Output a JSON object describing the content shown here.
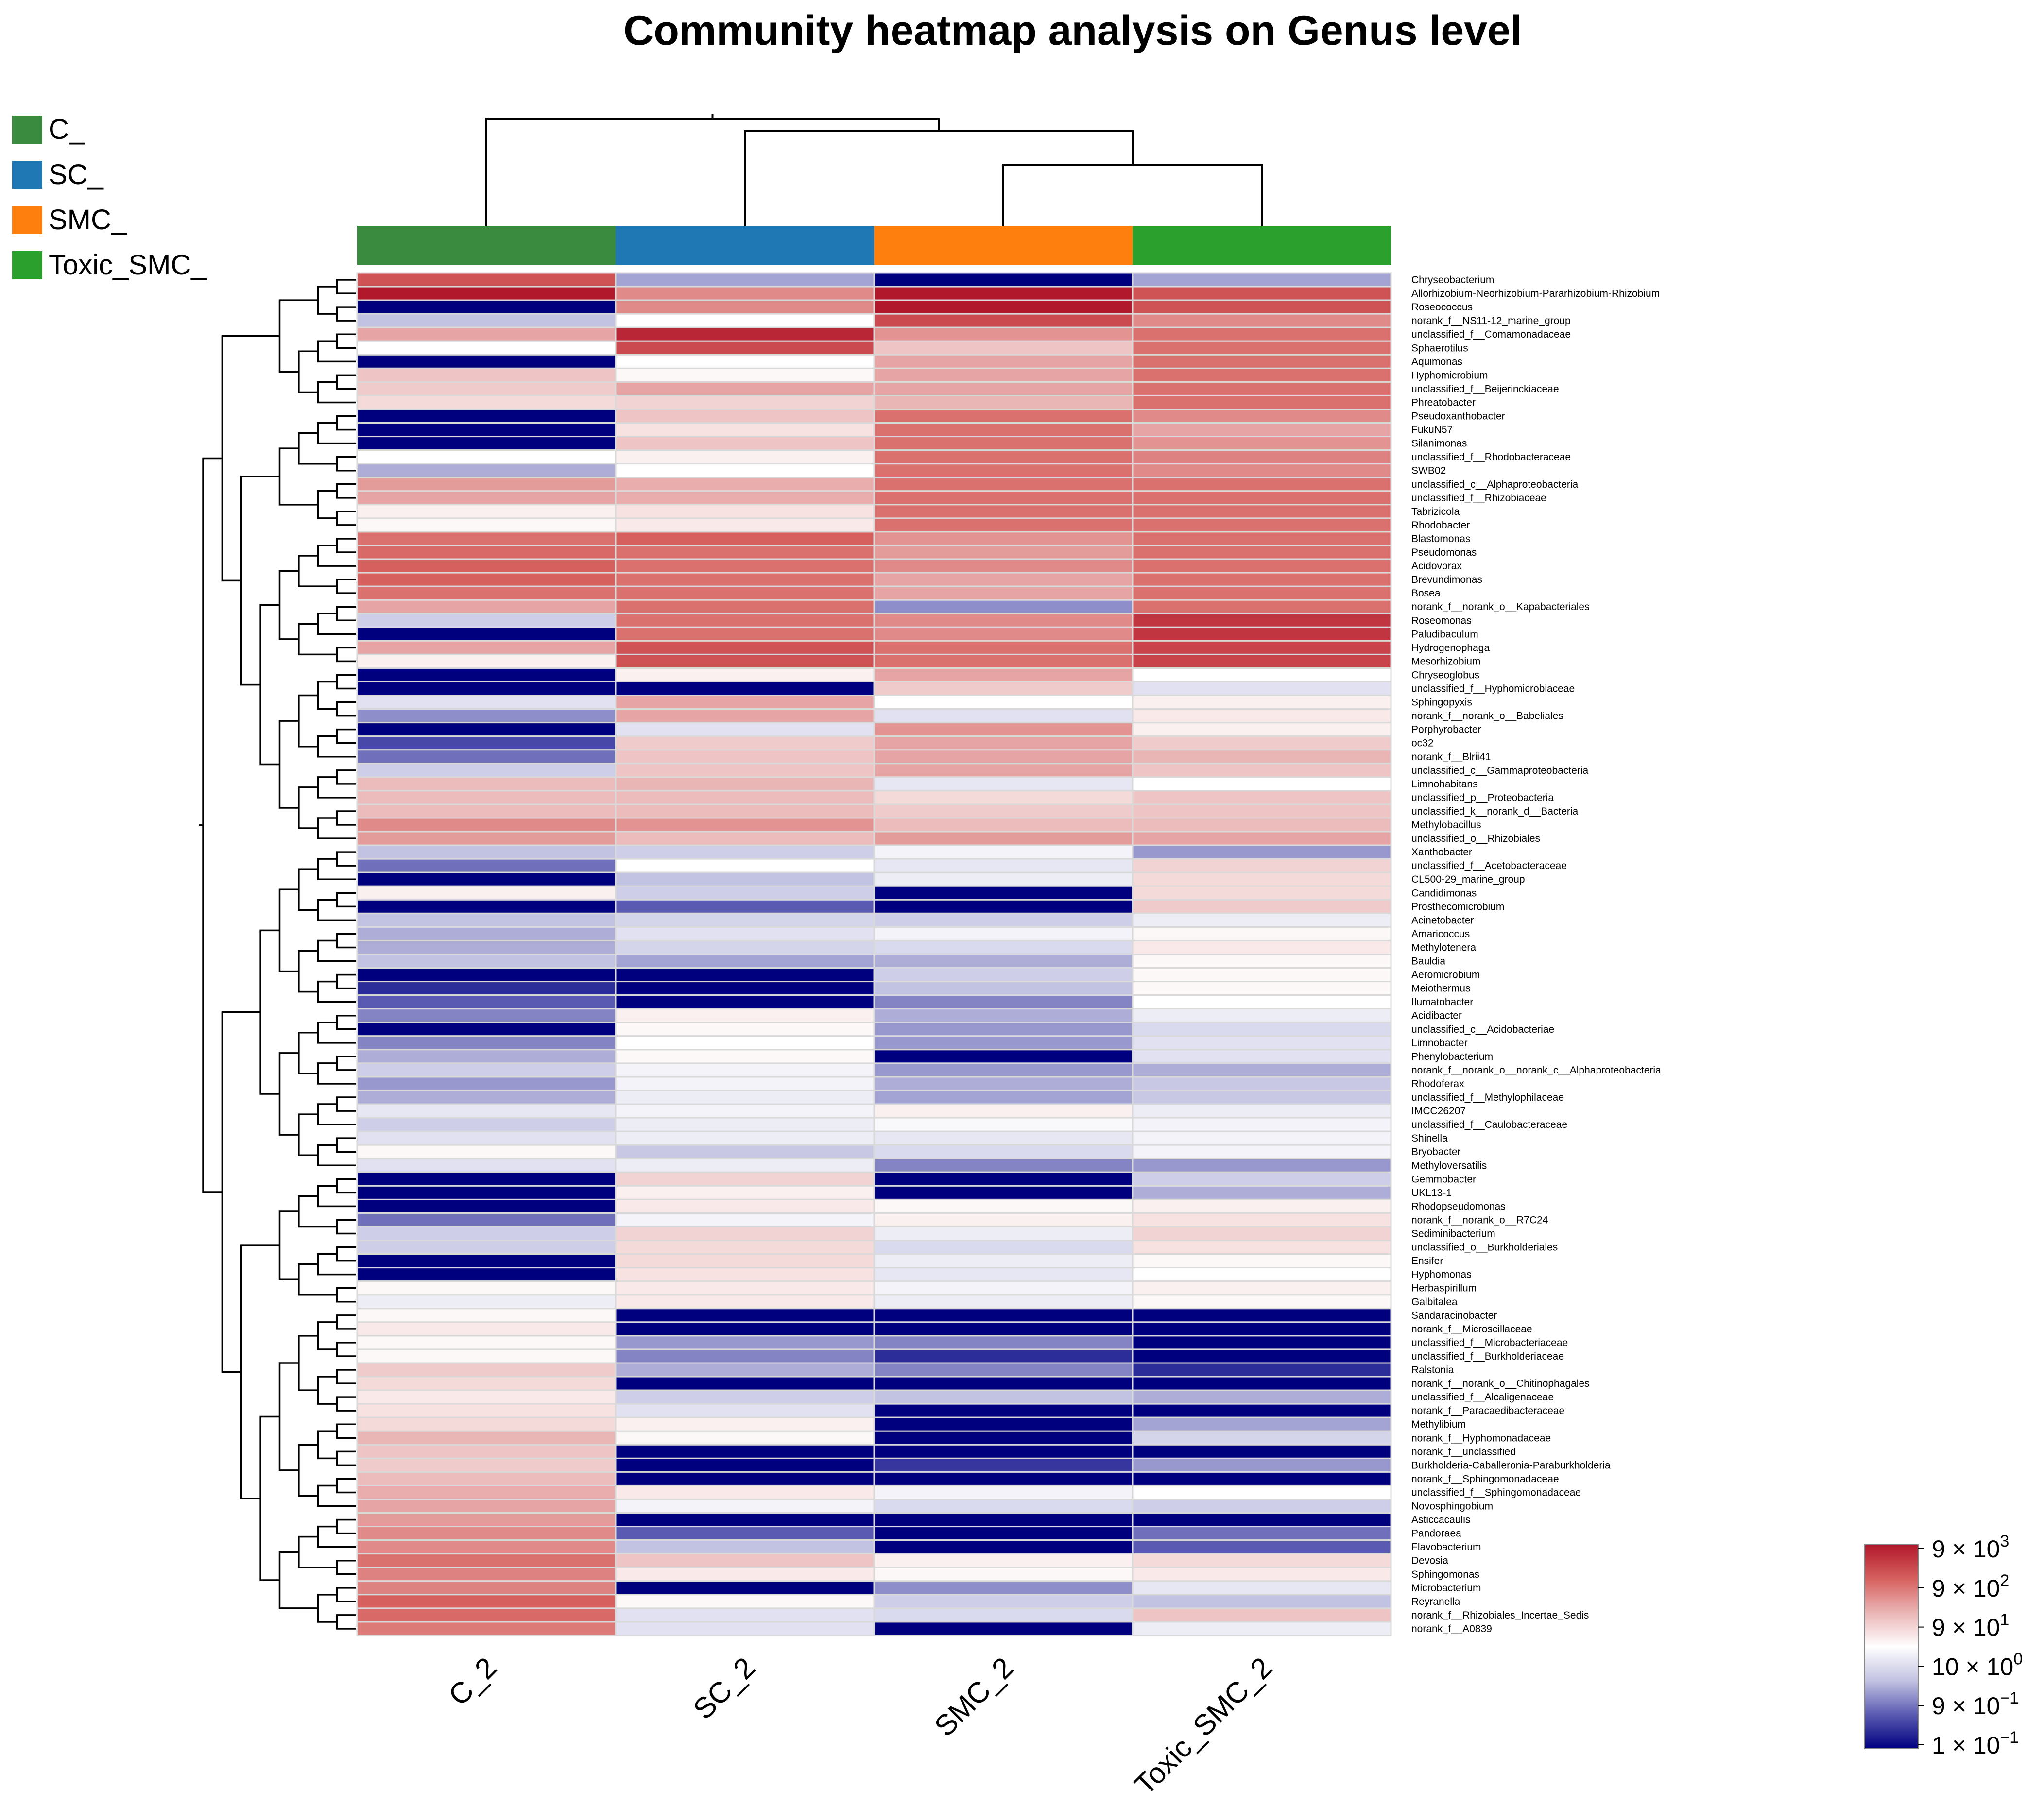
{
  "chart_data": {
    "type": "heatmap",
    "title": "Community heatmap analysis on Genus level",
    "groups": [
      {
        "name": "C_",
        "color": "#3a8a3f"
      },
      {
        "name": "SC_",
        "color": "#1f77b4"
      },
      {
        "name": "SMC_",
        "color": "#ff7f0e"
      },
      {
        "name": "Toxic_SMC_",
        "color": "#2ca02c"
      }
    ],
    "samples": [
      {
        "name": "C_2",
        "group": "C_"
      },
      {
        "name": "SC_2",
        "group": "SC_"
      },
      {
        "name": "SMC_2",
        "group": "SMC_"
      },
      {
        "name": "Toxic_SMC_2",
        "group": "Toxic_SMC_"
      }
    ],
    "colorbar": {
      "ticks": [
        {
          "mantissa": "9",
          "exp": "3",
          "base_label": "9 × 10"
        },
        {
          "mantissa": "9",
          "exp": "2",
          "base_label": "9 × 10"
        },
        {
          "mantissa": "9",
          "exp": "1",
          "base_label": "9 × 10"
        },
        {
          "mantissa": "10",
          "exp": "0",
          "base_label": "10 × 10"
        },
        {
          "mantissa": "9",
          "exp": "−1",
          "base_label": "9 × 10"
        },
        {
          "mantissa": "1",
          "exp": "−1",
          "base_label": "1 × 10"
        }
      ],
      "colors": [
        "#b2182b",
        "#d6605e",
        "#eab5b5",
        "#ffffff",
        "#c2c2e2",
        "#5a5ab2",
        "#00007f"
      ],
      "scale_min": -3,
      "scale_max": 3
    },
    "rows": [
      {
        "name": "Chryseobacterium",
        "values": [
          2.2,
          -1.3,
          -3,
          -1.3
        ]
      },
      {
        "name": "Allorhizobium-Neorhizobium-Pararhizobium-Rhizobium",
        "values": [
          3,
          1.5,
          3,
          2.2
        ]
      },
      {
        "name": "Roseococcus",
        "values": [
          -3,
          1.5,
          3,
          2.2
        ]
      },
      {
        "name": "norank_f__NS11-12_marine_group",
        "values": [
          -1,
          0,
          2.3,
          1.5
        ]
      },
      {
        "name": "unclassified_f__Comamonadaceae",
        "values": [
          1.2,
          2.8,
          1.4,
          1.8
        ]
      },
      {
        "name": "Sphaerotilus",
        "values": [
          0,
          2.3,
          0.8,
          1.8
        ]
      },
      {
        "name": "Aquimonas",
        "values": [
          -3,
          0,
          1.2,
          1.8
        ]
      },
      {
        "name": "Hyphomicrobium",
        "values": [
          0.8,
          0.1,
          1.2,
          1.8
        ]
      },
      {
        "name": "unclassified_f__Beijerinckiaceae",
        "values": [
          0.7,
          1.2,
          1.2,
          1.8
        ]
      },
      {
        "name": "Phreatobacter",
        "values": [
          0.5,
          0.6,
          1,
          1.8
        ]
      },
      {
        "name": "Pseudoxanthobacter",
        "values": [
          -3,
          0.8,
          1.8,
          1.5
        ]
      },
      {
        "name": "FukuN57",
        "values": [
          -3,
          0.4,
          1.8,
          1.2
        ]
      },
      {
        "name": "Silanimonas",
        "values": [
          -3,
          0.8,
          1.8,
          1.4
        ]
      },
      {
        "name": "unclassified_f__Rhodobacteraceae",
        "values": [
          0,
          0.2,
          1.8,
          1.6
        ]
      },
      {
        "name": "SWB02",
        "values": [
          -1.2,
          0,
          1.8,
          1.5
        ]
      },
      {
        "name": "unclassified_c__Alphaproteobacteria",
        "values": [
          1.3,
          1.1,
          1.8,
          1.8
        ]
      },
      {
        "name": "unclassified_f__Rhizobiaceae",
        "values": [
          1.2,
          1.1,
          1.8,
          1.8
        ]
      },
      {
        "name": "Tabrizicola",
        "values": [
          0.2,
          0.4,
          1.8,
          1.8
        ]
      },
      {
        "name": "Rhodobacter",
        "values": [
          0.1,
          0.3,
          1.8,
          1.8
        ]
      },
      {
        "name": "Blastomonas",
        "values": [
          1.8,
          2,
          1.4,
          1.8
        ]
      },
      {
        "name": "Pseudomonas",
        "values": [
          1.9,
          1.8,
          1.3,
          1.8
        ]
      },
      {
        "name": "Acidovorax",
        "values": [
          2,
          1.8,
          1.5,
          1.8
        ]
      },
      {
        "name": "Brevundimonas",
        "values": [
          2,
          1.8,
          1.2,
          1.8
        ]
      },
      {
        "name": "Bosea",
        "values": [
          1.8,
          1.8,
          1.2,
          1.8
        ]
      },
      {
        "name": "norank_f__norank_o__Kapabacteriales",
        "values": [
          1.2,
          1.8,
          -1.5,
          1.8
        ]
      },
      {
        "name": "Roseomonas",
        "values": [
          -0.8,
          1.8,
          1.5,
          2.6
        ]
      },
      {
        "name": "Paludibaculum",
        "values": [
          -3,
          1.8,
          1.5,
          2.6
        ]
      },
      {
        "name": "Hydrogenophaga",
        "values": [
          1.2,
          2.2,
          1.8,
          2.4
        ]
      },
      {
        "name": "Mesorhizobium",
        "values": [
          0.2,
          2.2,
          1.8,
          2.4
        ]
      },
      {
        "name": "Chryseoglobus",
        "values": [
          -3,
          0.2,
          1.2,
          0
        ]
      },
      {
        "name": "unclassified_f__Hyphomicrobiaceae",
        "values": [
          -3,
          -3,
          0.7,
          -0.5
        ]
      },
      {
        "name": "Sphingopyxis",
        "values": [
          -0.5,
          1.2,
          0,
          0.2
        ]
      },
      {
        "name": "norank_f__norank_o__Babeliales",
        "values": [
          -1.5,
          1.2,
          -0.5,
          0.3
        ]
      },
      {
        "name": "Porphyrobacter",
        "values": [
          -3,
          -0.5,
          1.4,
          0.2
        ]
      },
      {
        "name": "oc32",
        "values": [
          -2.2,
          0.7,
          1.2,
          0.7
        ]
      },
      {
        "name": "norank_f__Blrii41",
        "values": [
          -1.8,
          0.8,
          1.2,
          1
        ]
      },
      {
        "name": "unclassified_c__Gammaproteobacteria",
        "values": [
          -0.8,
          0.8,
          1.2,
          0.8
        ]
      },
      {
        "name": "Limnohabitans",
        "values": [
          0.9,
          1,
          -0.4,
          0
        ]
      },
      {
        "name": "unclassified_p__Proteobacteria",
        "values": [
          0.9,
          0.9,
          0.5,
          0.8
        ]
      },
      {
        "name": "unclassified_k__norank_d__Bacteria",
        "values": [
          0.9,
          0.9,
          0.7,
          0.8
        ]
      },
      {
        "name": "Methylobacillus",
        "values": [
          1.5,
          1.4,
          0.9,
          0.9
        ]
      },
      {
        "name": "unclassified_o__Rhizobiales",
        "values": [
          1.3,
          0.9,
          1.3,
          1.2
        ]
      },
      {
        "name": "Xanthobacter",
        "values": [
          -1,
          -0.8,
          -0.2,
          -1.4
        ]
      },
      {
        "name": "unclassified_f__Acetobacteraceae",
        "values": [
          -1.8,
          0,
          -0.4,
          0.6
        ]
      },
      {
        "name": "CL500-29_marine_group",
        "values": [
          -3,
          -1,
          -0.3,
          0.5
        ]
      },
      {
        "name": "Candidimonas",
        "values": [
          0.2,
          -0.8,
          -3,
          0.5
        ]
      },
      {
        "name": "Prosthecomicrobium",
        "values": [
          -3,
          -2,
          -3,
          0.7
        ]
      },
      {
        "name": "Acinetobacter",
        "values": [
          -1,
          -0.7,
          -0.8,
          -0.3
        ]
      },
      {
        "name": "Amaricoccus",
        "values": [
          -1.2,
          -0.5,
          -0.2,
          0.1
        ]
      },
      {
        "name": "Methylotenera",
        "values": [
          -1.2,
          -0.7,
          -0.6,
          0.3
        ]
      },
      {
        "name": "Bauldia",
        "values": [
          -1,
          -1.3,
          -1.2,
          0.1
        ]
      },
      {
        "name": "Aeromicrobium",
        "values": [
          -3,
          -3,
          -0.8,
          0.1
        ]
      },
      {
        "name": "Meiothermus",
        "values": [
          -2.5,
          -3,
          -1,
          0.1
        ]
      },
      {
        "name": "Ilumatobacter",
        "values": [
          -2,
          -3,
          -1.6,
          0
        ]
      },
      {
        "name": "Acidibacter",
        "values": [
          -1.6,
          0.2,
          -1.2,
          -0.3
        ]
      },
      {
        "name": "unclassified_c__Acidobacteriae",
        "values": [
          -3,
          0.1,
          -1.4,
          -0.6
        ]
      },
      {
        "name": "Limnobacter",
        "values": [
          -1.6,
          0,
          -1.4,
          -0.5
        ]
      },
      {
        "name": "Phenylobacterium",
        "values": [
          -1.2,
          0.1,
          -3,
          -0.5
        ]
      },
      {
        "name": "norank_f__norank_o__norank_c__Alphaproteobacteria",
        "values": [
          -0.8,
          -0.2,
          -1.4,
          -1.2
        ]
      },
      {
        "name": "Rhodoferax",
        "values": [
          -1.4,
          -0.2,
          -1.2,
          -0.9
        ]
      },
      {
        "name": "unclassified_f__Methylophilaceae",
        "values": [
          -1.2,
          -0.3,
          -1.3,
          -0.9
        ]
      },
      {
        "name": "IMCC26207",
        "values": [
          -0.4,
          -0.2,
          0.2,
          -0.3
        ]
      },
      {
        "name": "unclassified_f__Caulobacteraceae",
        "values": [
          -0.8,
          -0.3,
          -0.1,
          -0.2
        ]
      },
      {
        "name": "Shinella",
        "values": [
          -0.5,
          -0.3,
          -0.4,
          -0.2
        ]
      },
      {
        "name": "Bryobacter",
        "values": [
          0.1,
          -0.9,
          -0.6,
          -0.2
        ]
      },
      {
        "name": "Methyloversatilis",
        "values": [
          -0.5,
          -0.3,
          -1.6,
          -1.4
        ]
      },
      {
        "name": "Gemmobacter",
        "values": [
          -3,
          0.6,
          -3,
          -0.8
        ]
      },
      {
        "name": "UKL13-1",
        "values": [
          -3,
          0.2,
          -3,
          -1.2
        ]
      },
      {
        "name": "Rhodopseudomonas",
        "values": [
          -3,
          0.3,
          0.1,
          0.2
        ]
      },
      {
        "name": "norank_f__norank_o__R7C24",
        "values": [
          -1.8,
          -0.2,
          0.2,
          0.4
        ]
      },
      {
        "name": "Sediminibacterium",
        "values": [
          -0.8,
          0.6,
          -0.3,
          0.6
        ]
      },
      {
        "name": "unclassified_o__Burkholderiales",
        "values": [
          -0.8,
          0.5,
          -0.6,
          0.4
        ]
      },
      {
        "name": "Ensifer",
        "values": [
          -3,
          0.5,
          -0.3,
          0.1
        ]
      },
      {
        "name": "Hyphomonas",
        "values": [
          -3,
          0.4,
          -0.4,
          0
        ]
      },
      {
        "name": "Herbaspirillum",
        "values": [
          0.1,
          0.3,
          -0.2,
          0.2
        ]
      },
      {
        "name": "Galbitalea",
        "values": [
          -0.3,
          0.3,
          -0.3,
          0.1
        ]
      },
      {
        "name": "Sandaracinobacter",
        "values": [
          0.1,
          -3,
          -3,
          -3
        ]
      },
      {
        "name": "norank_f__Microscillaceae",
        "values": [
          0.3,
          -3,
          -3,
          -3
        ]
      },
      {
        "name": "unclassified_f__Microbacteriaceae",
        "values": [
          0.1,
          -1.4,
          -1.6,
          -3
        ]
      },
      {
        "name": "unclassified_f__Burkholderiaceae",
        "values": [
          0.1,
          -1.6,
          -2.5,
          -3
        ]
      },
      {
        "name": "Ralstonia",
        "values": [
          0.7,
          -1.2,
          -1.6,
          -2.5
        ]
      },
      {
        "name": "norank_f__norank_o__Chitinophagales",
        "values": [
          0.5,
          -3,
          -3,
          -3
        ]
      },
      {
        "name": "unclassified_f__Alcaligenaceae",
        "values": [
          0.3,
          -0.8,
          -1,
          -1.2
        ]
      },
      {
        "name": "norank_f__Paracaedibacteraceae",
        "values": [
          0.4,
          -0.5,
          -3,
          -3
        ]
      },
      {
        "name": "Methylibium",
        "values": [
          0.5,
          0.2,
          -3,
          -1.3
        ]
      },
      {
        "name": "norank_f__Hyphomonadaceae",
        "values": [
          1,
          0.1,
          -3,
          -0.7
        ]
      },
      {
        "name": "norank_f__unclassified",
        "values": [
          0.8,
          -3,
          -3,
          -3
        ]
      },
      {
        "name": "Burkholderia-Caballeronia-Paraburkholderia",
        "values": [
          0.7,
          -3,
          -2.4,
          -1.4
        ]
      },
      {
        "name": "norank_f__Sphingomonadaceae",
        "values": [
          0.9,
          -3,
          -3,
          -3
        ]
      },
      {
        "name": "unclassified_f__Sphingomonadaceae",
        "values": [
          1.1,
          0.3,
          -0.2,
          0
        ]
      },
      {
        "name": "Novosphingobium",
        "values": [
          1.2,
          -0.2,
          -0.6,
          -0.8
        ]
      },
      {
        "name": "Asticcacaulis",
        "values": [
          1.3,
          -3,
          -3,
          -3
        ]
      },
      {
        "name": "Pandoraea",
        "values": [
          1.5,
          -2,
          -3,
          -1.8
        ]
      },
      {
        "name": "Flavobacterium",
        "values": [
          1.5,
          -1,
          -3,
          -2
        ]
      },
      {
        "name": "Devosia",
        "values": [
          1.8,
          0.8,
          0.2,
          0.5
        ]
      },
      {
        "name": "Sphingomonas",
        "values": [
          1.6,
          0.3,
          0.1,
          0.3
        ]
      },
      {
        "name": "Microbacterium",
        "values": [
          1.6,
          -3,
          -1.5,
          -0.4
        ]
      },
      {
        "name": "Reyranella",
        "values": [
          2,
          0.1,
          -0.8,
          -1
        ]
      },
      {
        "name": "norank_f__Rhizobiales_Incertae_Sedis",
        "values": [
          1.9,
          -0.5,
          -0.6,
          0.8
        ]
      },
      {
        "name": "norank_f__A0839",
        "values": [
          1.7,
          -0.5,
          -3,
          -0.3
        ]
      }
    ]
  }
}
